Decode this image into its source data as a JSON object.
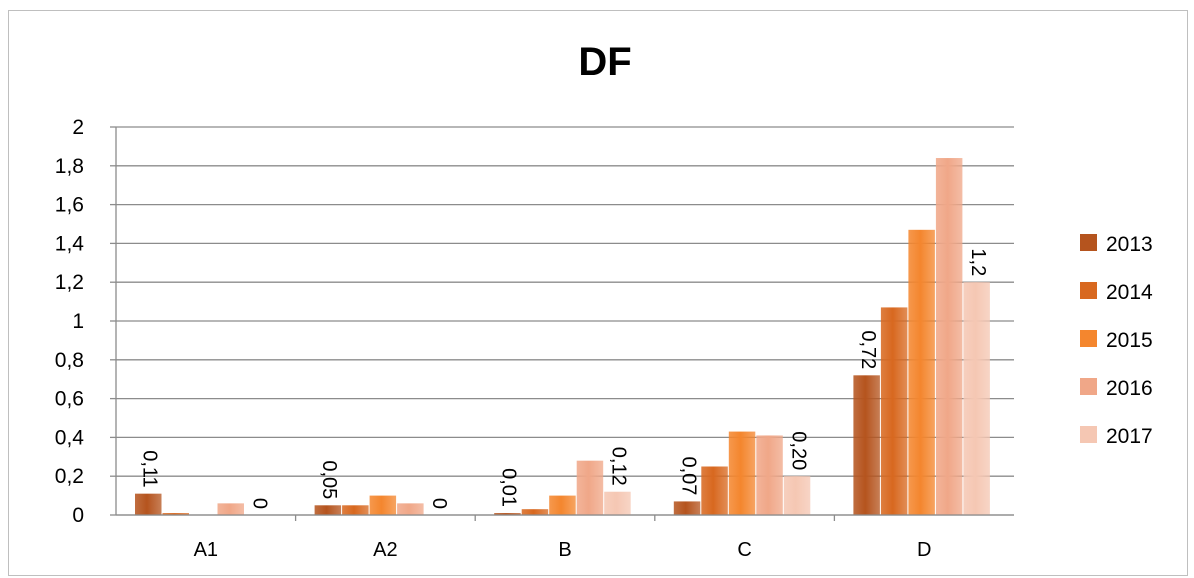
{
  "chart_data": {
    "type": "bar",
    "title": "DF",
    "xlabel": "",
    "ylabel": "",
    "ylim": [
      0,
      2
    ],
    "yticks": [
      "0",
      "0,2",
      "0,4",
      "0,6",
      "0,8",
      "1",
      "1,2",
      "1,4",
      "1,6",
      "1,8",
      "2"
    ],
    "categories": [
      "A1",
      "A2",
      "B",
      "C",
      "D"
    ],
    "series": [
      {
        "name": "2013",
        "color": "#b5541e",
        "values": [
          0.11,
          0.05,
          0.01,
          0.07,
          0.72
        ]
      },
      {
        "name": "2014",
        "color": "#d8681f",
        "values": [
          0.01,
          0.05,
          0.03,
          0.25,
          1.07
        ]
      },
      {
        "name": "2015",
        "color": "#f4862e",
        "values": [
          0.0,
          0.1,
          0.1,
          0.43,
          1.47
        ]
      },
      {
        "name": "2016",
        "color": "#f0a788",
        "values": [
          0.06,
          0.06,
          0.28,
          0.41,
          1.84
        ]
      },
      {
        "name": "2017",
        "color": "#f5c7b3",
        "values": [
          0.0,
          0.0,
          0.12,
          0.2,
          1.2
        ]
      }
    ],
    "data_labels": [
      {
        "category": "A1",
        "series": "2013",
        "text": "0,11"
      },
      {
        "category": "A1",
        "series": "2017",
        "text": "0"
      },
      {
        "category": "A2",
        "series": "2013",
        "text": "0,05"
      },
      {
        "category": "A2",
        "series": "2017",
        "text": "0"
      },
      {
        "category": "B",
        "series": "2013",
        "text": "0,01"
      },
      {
        "category": "B",
        "series": "2017",
        "text": "0,12"
      },
      {
        "category": "C",
        "series": "2013",
        "text": "0,07"
      },
      {
        "category": "C",
        "series": "2017",
        "text": "0,20"
      },
      {
        "category": "D",
        "series": "2013",
        "text": "0,72"
      },
      {
        "category": "D",
        "series": "2017",
        "text": "1,2"
      }
    ],
    "grid": true,
    "legend": "right"
  }
}
